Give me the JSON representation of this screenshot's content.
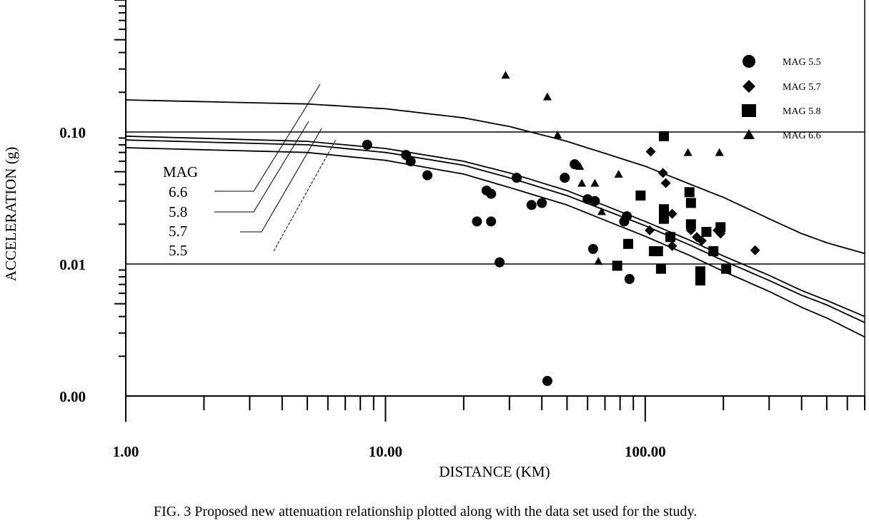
{
  "caption": "FIG. 3  Proposed new attenuation relationship plotted along with the data set used for the study.",
  "chart_data": {
    "type": "scatter",
    "title": "",
    "xlabel": "DISTANCE (KM)",
    "ylabel": "ACCELERATION (g)",
    "x_scale": "log",
    "y_scale": "log",
    "xlim": [
      1,
      700
    ],
    "ylim": [
      0.001,
      1.0
    ],
    "x_tick_labels": [
      {
        "value": 1,
        "label": "1.00"
      },
      {
        "value": 10,
        "label": "10.00"
      },
      {
        "value": 100,
        "label": "100.00"
      }
    ],
    "y_tick_labels": [
      {
        "value": 0.1,
        "label": "0.10"
      },
      {
        "value": 0.01,
        "label": "0.01"
      },
      {
        "value": 0.001,
        "label": "0.00"
      }
    ],
    "legend_position": "top-right",
    "curve_labels_title": "MAG",
    "curves": [
      {
        "name": "6.6",
        "x": [
          1,
          5,
          10,
          20,
          30,
          50,
          100,
          150,
          200,
          300,
          400,
          500,
          700
        ],
        "y": [
          0.175,
          0.163,
          0.15,
          0.128,
          0.11,
          0.085,
          0.055,
          0.04,
          0.032,
          0.022,
          0.017,
          0.0145,
          0.012
        ]
      },
      {
        "name": "5.8",
        "x": [
          1,
          5,
          10,
          20,
          30,
          50,
          100,
          150,
          200,
          300,
          400,
          500,
          700
        ],
        "y": [
          0.093,
          0.085,
          0.075,
          0.06,
          0.049,
          0.036,
          0.021,
          0.015,
          0.0115,
          0.0082,
          0.0063,
          0.0053,
          0.004
        ]
      },
      {
        "name": "5.7",
        "x": [
          1,
          5,
          10,
          20,
          30,
          50,
          100,
          150,
          200,
          300,
          400,
          500,
          700
        ],
        "y": [
          0.087,
          0.08,
          0.07,
          0.056,
          0.045,
          0.033,
          0.0195,
          0.0138,
          0.0106,
          0.0075,
          0.0058,
          0.0049,
          0.0036
        ]
      },
      {
        "name": "5.5",
        "x": [
          1,
          5,
          10,
          20,
          30,
          50,
          100,
          150,
          200,
          300,
          400,
          500,
          700
        ],
        "y": [
          0.076,
          0.07,
          0.061,
          0.048,
          0.038,
          0.028,
          0.0162,
          0.0115,
          0.0088,
          0.0062,
          0.0047,
          0.0039,
          0.0028
        ]
      }
    ],
    "series": [
      {
        "name": "MAG 5.5",
        "marker": "circle",
        "points": [
          [
            8.5,
            0.08
          ],
          [
            12,
            0.067
          ],
          [
            12.5,
            0.06
          ],
          [
            14.5,
            0.047
          ],
          [
            22.5,
            0.021
          ],
          [
            24.5,
            0.036
          ],
          [
            25.5,
            0.034
          ],
          [
            25.5,
            0.021
          ],
          [
            27.5,
            0.0103
          ],
          [
            32,
            0.045
          ],
          [
            36.5,
            0.028
          ],
          [
            40,
            0.029
          ],
          [
            42,
            0.0013
          ],
          [
            49,
            0.045
          ],
          [
            53.5,
            0.057
          ],
          [
            60,
            0.031
          ],
          [
            63,
            0.013
          ],
          [
            64,
            0.03
          ],
          [
            83,
            0.021
          ],
          [
            85,
            0.023
          ],
          [
            87,
            0.0077
          ]
        ]
      },
      {
        "name": "MAG 5.7",
        "marker": "diamond",
        "points": [
          [
            105,
            0.071
          ],
          [
            104,
            0.018
          ],
          [
            117,
            0.049
          ],
          [
            120,
            0.041
          ],
          [
            127,
            0.024
          ],
          [
            127,
            0.0137
          ],
          [
            150,
            0.018
          ],
          [
            158,
            0.016
          ],
          [
            165,
            0.015
          ],
          [
            190,
            0.018
          ],
          [
            195,
            0.017
          ],
          [
            265,
            0.0127
          ]
        ]
      },
      {
        "name": "MAG 5.8",
        "marker": "square",
        "points": [
          [
            96,
            0.033
          ],
          [
            118,
            0.093
          ],
          [
            118,
            0.026
          ],
          [
            118,
            0.022
          ],
          [
            108,
            0.0125
          ],
          [
            112,
            0.0125
          ],
          [
            115,
            0.0092
          ],
          [
            125,
            0.016
          ],
          [
            86,
            0.0142
          ],
          [
            78,
            0.0097
          ],
          [
            148,
            0.035
          ],
          [
            150,
            0.029
          ],
          [
            150,
            0.02
          ],
          [
            163,
            0.0088
          ],
          [
            163,
            0.0075
          ],
          [
            172,
            0.0175
          ],
          [
            183,
            0.0125
          ],
          [
            195,
            0.019
          ],
          [
            205,
            0.0092
          ]
        ]
      },
      {
        "name": "MAG 6.6",
        "marker": "triangle",
        "points": [
          [
            29,
            0.27
          ],
          [
            42,
            0.185
          ],
          [
            46,
            0.095
          ],
          [
            56,
            0.055
          ],
          [
            57,
            0.041
          ],
          [
            64,
            0.041
          ],
          [
            66,
            0.0105
          ],
          [
            68,
            0.025
          ],
          [
            79,
            0.048
          ],
          [
            146,
            0.07
          ],
          [
            193,
            0.07
          ]
        ]
      }
    ]
  }
}
